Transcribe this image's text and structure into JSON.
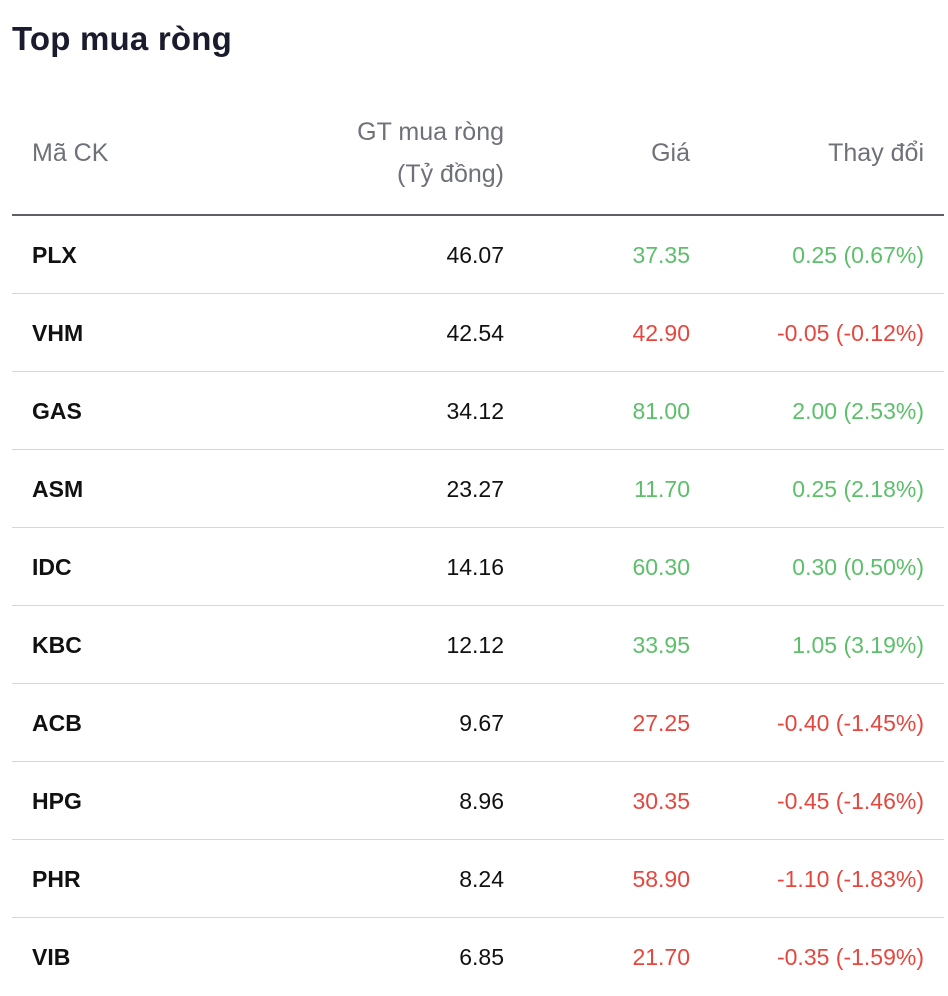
{
  "title": "Top mua ròng",
  "columns": {
    "symbol": "Mã CK",
    "value_line1": "GT mua ròng",
    "value_line2": "(Tỷ đồng)",
    "price": "Giá",
    "change": "Thay đổi"
  },
  "colors": {
    "up": "#5cbf6a",
    "down": "#e5473e"
  },
  "rows": [
    {
      "symbol": "PLX",
      "value": "46.07",
      "price": "37.35",
      "change": "0.25 (0.67%)",
      "direction": "up"
    },
    {
      "symbol": "VHM",
      "value": "42.54",
      "price": "42.90",
      "change": "-0.05 (-0.12%)",
      "direction": "down"
    },
    {
      "symbol": "GAS",
      "value": "34.12",
      "price": "81.00",
      "change": "2.00 (2.53%)",
      "direction": "up"
    },
    {
      "symbol": "ASM",
      "value": "23.27",
      "price": "11.70",
      "change": "0.25 (2.18%)",
      "direction": "up"
    },
    {
      "symbol": "IDC",
      "value": "14.16",
      "price": "60.30",
      "change": "0.30 (0.50%)",
      "direction": "up"
    },
    {
      "symbol": "KBC",
      "value": "12.12",
      "price": "33.95",
      "change": "1.05 (3.19%)",
      "direction": "up"
    },
    {
      "symbol": "ACB",
      "value": "9.67",
      "price": "27.25",
      "change": "-0.40 (-1.45%)",
      "direction": "down"
    },
    {
      "symbol": "HPG",
      "value": "8.96",
      "price": "30.35",
      "change": "-0.45 (-1.46%)",
      "direction": "down"
    },
    {
      "symbol": "PHR",
      "value": "8.24",
      "price": "58.90",
      "change": "-1.10 (-1.83%)",
      "direction": "down"
    },
    {
      "symbol": "VIB",
      "value": "6.85",
      "price": "21.70",
      "change": "-0.35 (-1.59%)",
      "direction": "down"
    }
  ]
}
